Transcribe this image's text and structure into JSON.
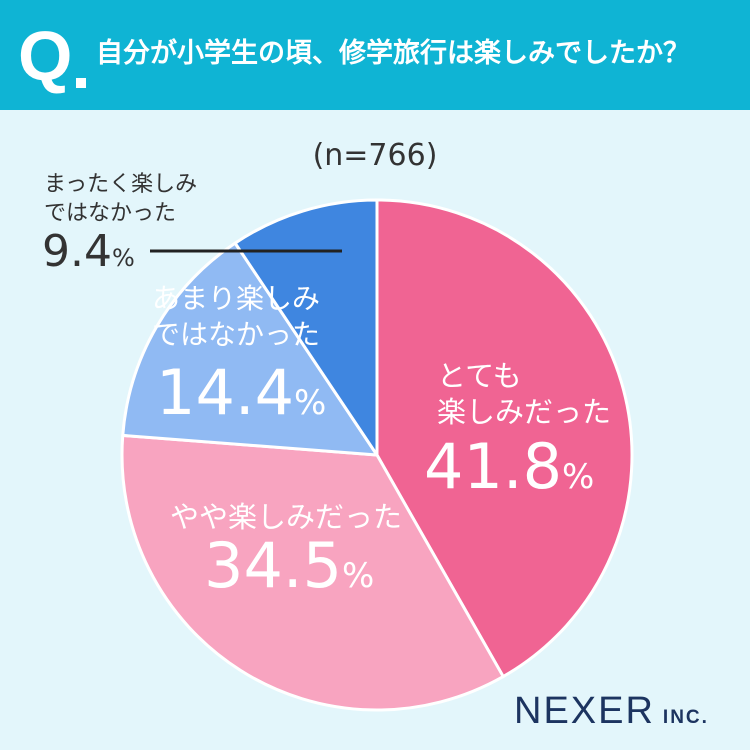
{
  "header": {
    "q_mark": "Q",
    "question": "自分が小学生の頃、修学旅行は楽しみでしたか？"
  },
  "sample_label": "(n=766)",
  "brand": {
    "name": "NEXER",
    "suffix": "INC."
  },
  "chart_data": {
    "type": "pie",
    "title": "自分が小学生の頃、修学旅行は楽しみでしたか？",
    "categories": [
      "とても楽しみだった",
      "やや楽しみだった",
      "あまり楽しみではなかった",
      "まったく楽しみではなかった"
    ],
    "values": [
      41.8,
      34.5,
      14.4,
      9.4
    ],
    "value_labels": [
      "41.8",
      "34.5",
      "14.4",
      "9.4"
    ],
    "percent_sign": "%",
    "colors": [
      "#f06493",
      "#f8a4c0",
      "#90baf3",
      "#3f86e0"
    ],
    "slice_labels": [
      [
        "とても",
        "楽しみだった"
      ],
      [
        "やや楽しみだった"
      ],
      [
        "あまり楽しみ",
        "ではなかった"
      ],
      [
        "まったく楽しみ",
        "ではなかった"
      ]
    ],
    "start_angle_deg": 0,
    "direction": "clockwise"
  }
}
